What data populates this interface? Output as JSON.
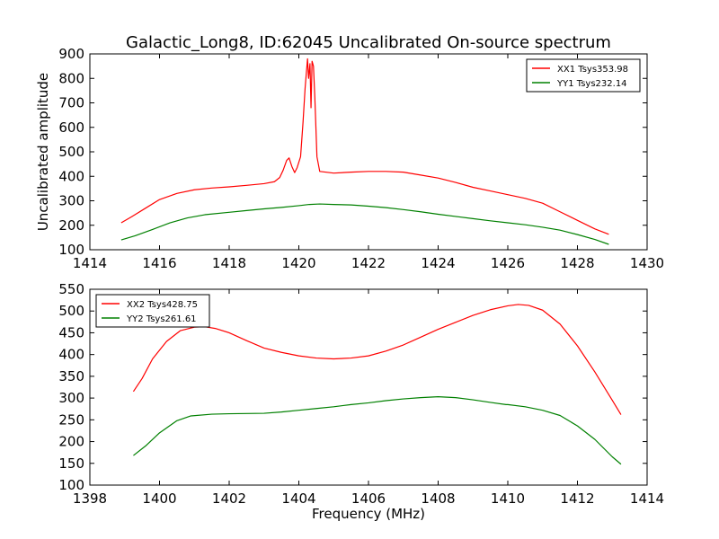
{
  "figure": {
    "title": "Galactic_Long8, ID:62045 Uncalibrated On-source spectrum"
  },
  "chart_data": [
    {
      "type": "line",
      "title": "Galactic_Long8, ID:62045 Uncalibrated On-source spectrum",
      "xlabel": "",
      "ylabel": "Uncalibrated amplitude",
      "xlim": [
        1414,
        1430
      ],
      "ylim": [
        100,
        900
      ],
      "xticks": [
        1414,
        1416,
        1418,
        1420,
        1422,
        1424,
        1426,
        1428,
        1430
      ],
      "yticks": [
        100,
        200,
        300,
        400,
        500,
        600,
        700,
        800,
        900
      ],
      "grid": false,
      "legend_position": "top-right",
      "series": [
        {
          "name": "XX1 Tsys353.98",
          "color": "#ff0000",
          "points": [
            [
              1414.9,
              210
            ],
            [
              1415.2,
              235
            ],
            [
              1415.6,
              270
            ],
            [
              1416.0,
              305
            ],
            [
              1416.5,
              330
            ],
            [
              1417.0,
              345
            ],
            [
              1417.5,
              352
            ],
            [
              1418.0,
              357
            ],
            [
              1418.5,
              363
            ],
            [
              1419.0,
              370
            ],
            [
              1419.3,
              378
            ],
            [
              1419.45,
              395
            ],
            [
              1419.55,
              425
            ],
            [
              1419.65,
              465
            ],
            [
              1419.72,
              475
            ],
            [
              1419.8,
              440
            ],
            [
              1419.88,
              415
            ],
            [
              1419.95,
              435
            ],
            [
              1420.05,
              480
            ],
            [
              1420.12,
              620
            ],
            [
              1420.18,
              760
            ],
            [
              1420.22,
              830
            ],
            [
              1420.25,
              880
            ],
            [
              1420.28,
              800
            ],
            [
              1420.32,
              860
            ],
            [
              1420.35,
              680
            ],
            [
              1420.38,
              870
            ],
            [
              1420.42,
              850
            ],
            [
              1420.46,
              720
            ],
            [
              1420.52,
              480
            ],
            [
              1420.6,
              420
            ],
            [
              1421.0,
              413
            ],
            [
              1421.5,
              417
            ],
            [
              1422.0,
              420
            ],
            [
              1422.5,
              420
            ],
            [
              1423.0,
              417
            ],
            [
              1423.5,
              405
            ],
            [
              1424.0,
              393
            ],
            [
              1424.5,
              375
            ],
            [
              1425.0,
              355
            ],
            [
              1425.5,
              340
            ],
            [
              1426.0,
              325
            ],
            [
              1426.5,
              310
            ],
            [
              1427.0,
              290
            ],
            [
              1427.5,
              255
            ],
            [
              1428.0,
              220
            ],
            [
              1428.5,
              185
            ],
            [
              1428.9,
              163
            ]
          ]
        },
        {
          "name": "YY1 Tsys232.14",
          "color": "#008000",
          "points": [
            [
              1414.9,
              140
            ],
            [
              1415.3,
              157
            ],
            [
              1415.8,
              183
            ],
            [
              1416.3,
              210
            ],
            [
              1416.8,
              230
            ],
            [
              1417.3,
              243
            ],
            [
              1418.0,
              253
            ],
            [
              1418.5,
              260
            ],
            [
              1419.0,
              267
            ],
            [
              1419.5,
              273
            ],
            [
              1420.0,
              280
            ],
            [
              1420.3,
              285
            ],
            [
              1420.6,
              287
            ],
            [
              1421.0,
              285
            ],
            [
              1421.5,
              283
            ],
            [
              1422.0,
              278
            ],
            [
              1422.5,
              272
            ],
            [
              1423.0,
              264
            ],
            [
              1423.5,
              255
            ],
            [
              1424.0,
              245
            ],
            [
              1424.5,
              236
            ],
            [
              1425.0,
              227
            ],
            [
              1425.5,
              218
            ],
            [
              1426.0,
              210
            ],
            [
              1426.5,
              202
            ],
            [
              1427.0,
              192
            ],
            [
              1427.5,
              180
            ],
            [
              1428.0,
              162
            ],
            [
              1428.5,
              142
            ],
            [
              1428.9,
              122
            ]
          ]
        }
      ]
    },
    {
      "type": "line",
      "title": "",
      "xlabel": "Frequency (MHz)",
      "ylabel": "",
      "xlim": [
        1398,
        1414
      ],
      "ylim": [
        100,
        550
      ],
      "xticks": [
        1398,
        1400,
        1402,
        1404,
        1406,
        1408,
        1410,
        1412,
        1414
      ],
      "yticks": [
        100,
        150,
        200,
        250,
        300,
        350,
        400,
        450,
        500,
        550
      ],
      "grid": false,
      "legend_position": "top-left",
      "series": [
        {
          "name": "XX2 Tsys428.75",
          "color": "#ff0000",
          "points": [
            [
              1399.25,
              315
            ],
            [
              1399.5,
              345
            ],
            [
              1399.8,
              390
            ],
            [
              1400.2,
              430
            ],
            [
              1400.6,
              455
            ],
            [
              1401.0,
              463
            ],
            [
              1401.3,
              464
            ],
            [
              1401.6,
              460
            ],
            [
              1402.0,
              450
            ],
            [
              1402.5,
              432
            ],
            [
              1403.0,
              415
            ],
            [
              1403.5,
              405
            ],
            [
              1404.0,
              397
            ],
            [
              1404.5,
              392
            ],
            [
              1405.0,
              390
            ],
            [
              1405.5,
              392
            ],
            [
              1406.0,
              397
            ],
            [
              1406.5,
              408
            ],
            [
              1407.0,
              422
            ],
            [
              1407.5,
              440
            ],
            [
              1408.0,
              458
            ],
            [
              1408.5,
              474
            ],
            [
              1409.0,
              490
            ],
            [
              1409.5,
              503
            ],
            [
              1410.0,
              512
            ],
            [
              1410.3,
              515
            ],
            [
              1410.6,
              513
            ],
            [
              1411.0,
              502
            ],
            [
              1411.5,
              470
            ],
            [
              1412.0,
              420
            ],
            [
              1412.5,
              360
            ],
            [
              1413.0,
              295
            ],
            [
              1413.25,
              262
            ]
          ]
        },
        {
          "name": "YY2 Tsys261.61",
          "color": "#008000",
          "points": [
            [
              1399.25,
              168
            ],
            [
              1399.6,
              190
            ],
            [
              1400.0,
              220
            ],
            [
              1400.5,
              248
            ],
            [
              1400.9,
              259
            ],
            [
              1401.5,
              263
            ],
            [
              1402.0,
              264
            ],
            [
              1403.0,
              265
            ],
            [
              1403.5,
              268
            ],
            [
              1404.0,
              272
            ],
            [
              1404.5,
              276
            ],
            [
              1405.0,
              280
            ],
            [
              1405.5,
              285
            ],
            [
              1406.0,
              289
            ],
            [
              1406.5,
              294
            ],
            [
              1407.0,
              298
            ],
            [
              1407.5,
              301
            ],
            [
              1408.0,
              303
            ],
            [
              1408.5,
              301
            ],
            [
              1409.0,
              296
            ],
            [
              1409.5,
              290
            ],
            [
              1409.95,
              285
            ],
            [
              1410.0,
              285
            ],
            [
              1410.5,
              280
            ],
            [
              1411.0,
              272
            ],
            [
              1411.5,
              260
            ],
            [
              1412.0,
              236
            ],
            [
              1412.5,
              205
            ],
            [
              1413.0,
              165
            ],
            [
              1413.25,
              148
            ]
          ]
        }
      ]
    }
  ]
}
